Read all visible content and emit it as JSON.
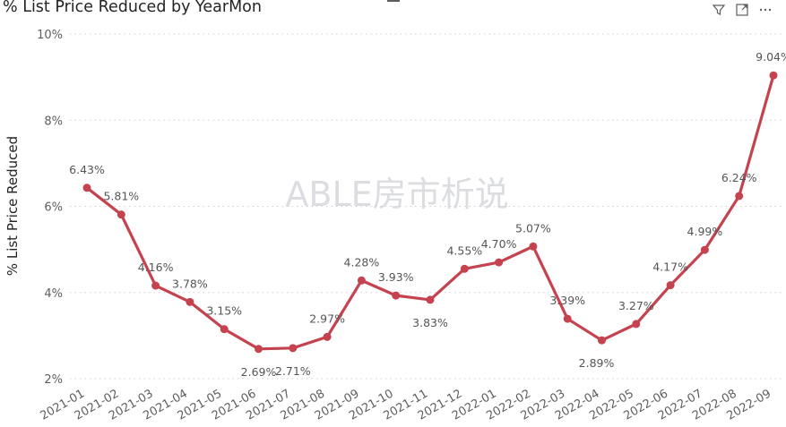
{
  "visual": {
    "title": "% List Price Reduced by YearMon",
    "toolbar": [
      {
        "icon": "filter-icon"
      },
      {
        "icon": "focus-mode-icon"
      },
      {
        "icon": "more-options-icon"
      }
    ]
  },
  "watermark": "ABLE房市析说",
  "colors": {
    "line": "#c4434f",
    "grid": "#d0d0d0",
    "text": "#252423"
  },
  "chart_data": {
    "type": "line",
    "title": "% List Price Reduced by YearMon",
    "xlabel": "",
    "ylabel": "% List Price Reduced",
    "categories": [
      "2021-01",
      "2021-02",
      "2021-03",
      "2021-04",
      "2021-05",
      "2021-06",
      "2021-07",
      "2021-08",
      "2021-09",
      "2021-10",
      "2021-11",
      "2021-12",
      "2022-01",
      "2022-02",
      "2022-03",
      "2022-04",
      "2022-05",
      "2022-06",
      "2022-07",
      "2022-08",
      "2022-09"
    ],
    "values": [
      6.43,
      5.81,
      4.16,
      3.78,
      3.15,
      2.69,
      2.71,
      2.97,
      4.28,
      3.93,
      3.83,
      4.55,
      4.7,
      5.07,
      3.39,
      2.89,
      3.27,
      4.17,
      4.99,
      6.24,
      9.04
    ],
    "data_labels": [
      "6.43%",
      "5.81%",
      "4.16%",
      "3.78%",
      "3.15%",
      "2.69%",
      "2.71%",
      "2.97%",
      "4.28%",
      "3.93%",
      "3.83%",
      "4.55%",
      "4.70%",
      "5.07%",
      "3.39%",
      "",
      "3.27%",
      "4.17%",
      "4.99%",
      "6.24%",
      "9.04%"
    ],
    "y_ticks": [
      2,
      4,
      6,
      8,
      10
    ],
    "y_tick_labels": [
      "2%",
      "4%",
      "6%",
      "8%",
      "10%"
    ],
    "ylim": [
      2,
      10
    ],
    "grid": true,
    "legend": "none"
  },
  "extra_labels": [
    {
      "text": "2.89%"
    }
  ]
}
